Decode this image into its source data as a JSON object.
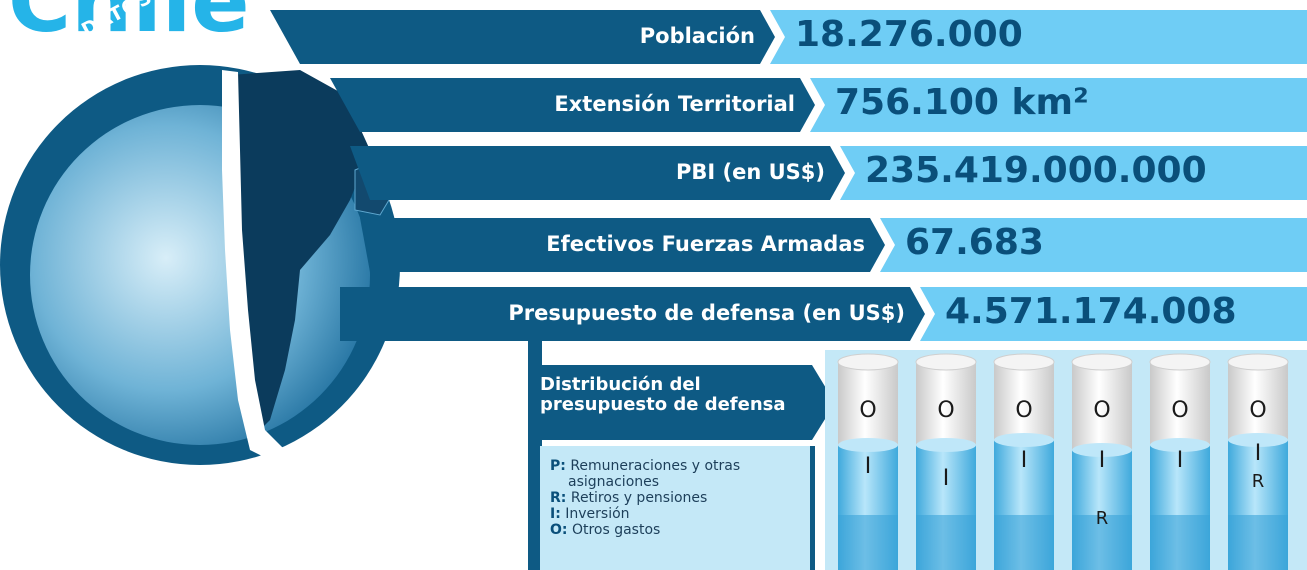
{
  "header": {
    "title": "Chile",
    "badge": "DATOS BÁSICOS"
  },
  "facts": [
    {
      "label": "Población",
      "value": "18.276.000"
    },
    {
      "label": "Extensión Territorial",
      "value": "756.100 km²"
    },
    {
      "label": "PBI (en US$)",
      "value": "235.419.000.000"
    },
    {
      "label": "Efectivos Fuerzas Armadas",
      "value": "67.683"
    },
    {
      "label": "Presupuesto de defensa (en US$)",
      "value": "4.571.174.008"
    }
  ],
  "distribution": {
    "title": "Distribución del presupuesto de defensa",
    "legend": [
      {
        "key": "P:",
        "text": "Remuneraciones y otras asignaciones"
      },
      {
        "key": "R:",
        "text": "Retiros y pensiones"
      },
      {
        "key": "I:",
        "text": "Inversión"
      },
      {
        "key": "O:",
        "text": "Otros gastos"
      }
    ],
    "columns": [
      {
        "top": "O",
        "middle": "I"
      },
      {
        "top": "O",
        "middle": "I"
      },
      {
        "top": "O",
        "middle": "I"
      },
      {
        "top": "O",
        "middle": "I",
        "bottom": "R"
      },
      {
        "top": "O",
        "middle": "I"
      },
      {
        "top": "O",
        "middle": "I",
        "bottom": "R"
      }
    ]
  }
}
